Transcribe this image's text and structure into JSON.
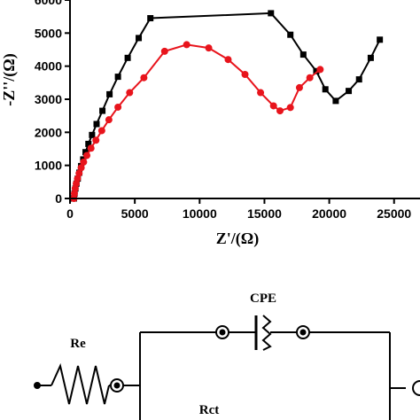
{
  "chart_data": {
    "type": "scatter",
    "title": "",
    "xlabel": "Z'/(Ω)",
    "ylabel": "-Z''/(Ω)",
    "xlim": [
      0,
      27000
    ],
    "ylim": [
      0,
      6000
    ],
    "xticks": [
      "0",
      "5000",
      "10000",
      "15000",
      "20000",
      "25000"
    ],
    "yticks": [
      "0",
      "1000",
      "2000",
      "3000",
      "4000",
      "5000",
      "6000"
    ],
    "legend": "none",
    "grid": false,
    "series": [
      {
        "marker": "square",
        "color": "#000000",
        "x": [
          300,
          350,
          420,
          500,
          600,
          720,
          860,
          1020,
          1200,
          1420,
          1700,
          2050,
          2500,
          3050,
          3700,
          4450,
          5300,
          6200,
          15500,
          17000,
          18000,
          19000,
          19700,
          20500,
          21500,
          22300,
          23200,
          23900
        ],
        "y": [
          0,
          150,
          300,
          450,
          600,
          780,
          980,
          1180,
          1400,
          1650,
          1920,
          2250,
          2650,
          3150,
          3680,
          4250,
          4850,
          5450,
          5600,
          4950,
          4350,
          3850,
          3300,
          2950,
          3250,
          3600,
          4250,
          4800
        ]
      },
      {
        "marker": "circle",
        "color": "#e8141c",
        "x": [
          300,
          340,
          400,
          480,
          580,
          700,
          860,
          1050,
          1300,
          1620,
          2000,
          2450,
          3000,
          3700,
          4600,
          5700,
          7300,
          9000,
          10700,
          12200,
          13500,
          14700,
          15700,
          16200,
          17000,
          17700,
          18500,
          19300
        ],
        "y": [
          0,
          150,
          300,
          450,
          600,
          760,
          930,
          1100,
          1300,
          1520,
          1760,
          2050,
          2380,
          2760,
          3200,
          3650,
          4450,
          4650,
          4550,
          4200,
          3750,
          3200,
          2800,
          2650,
          2750,
          3350,
          3650,
          3900
        ]
      }
    ]
  },
  "circuit": {
    "cpe_label": "CPE",
    "re_label": "Re",
    "rct_label": "Rct"
  }
}
